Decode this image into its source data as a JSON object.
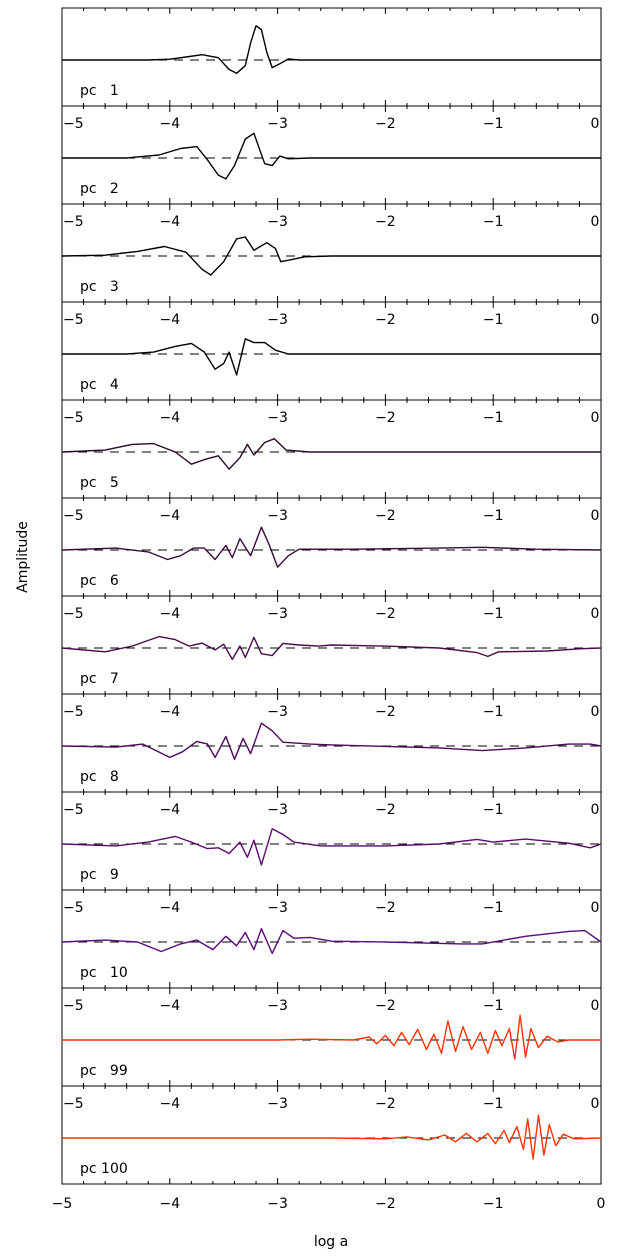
{
  "chart_data": {
    "type": "line",
    "xlabel": "log a",
    "ylabel": "Amplitude",
    "xlim": [
      -5,
      0
    ],
    "x_ticks": [
      -5,
      -4,
      -3,
      -2,
      -1,
      0
    ],
    "x_tick_labels": [
      "−5",
      "−4",
      "−3",
      "−2",
      "−1",
      "0"
    ],
    "grid": false,
    "reference_line": {
      "y": 0,
      "style": "dashed"
    },
    "panels": [
      {
        "label": "pc   1",
        "color": "#000000",
        "series": [
          {
            "x": -5,
            "y": 0
          },
          {
            "x": -4.2,
            "y": 0
          },
          {
            "x": -4.0,
            "y": 0.02
          },
          {
            "x": -3.85,
            "y": 0.08
          },
          {
            "x": -3.7,
            "y": 0.14
          },
          {
            "x": -3.55,
            "y": 0.06
          },
          {
            "x": -3.45,
            "y": -0.25
          },
          {
            "x": -3.38,
            "y": -0.35
          },
          {
            "x": -3.3,
            "y": -0.15
          },
          {
            "x": -3.25,
            "y": 0.45
          },
          {
            "x": -3.2,
            "y": 0.9
          },
          {
            "x": -3.15,
            "y": 0.8
          },
          {
            "x": -3.1,
            "y": 0.2
          },
          {
            "x": -3.05,
            "y": -0.2
          },
          {
            "x": -2.98,
            "y": -0.1
          },
          {
            "x": -2.9,
            "y": 0.03
          },
          {
            "x": -2.8,
            "y": 0
          },
          {
            "x": 0,
            "y": 0
          }
        ]
      },
      {
        "label": "pc   2",
        "color": "#000000",
        "series": [
          {
            "x": -5,
            "y": 0
          },
          {
            "x": -4.4,
            "y": 0
          },
          {
            "x": -4.1,
            "y": 0.08
          },
          {
            "x": -3.9,
            "y": 0.25
          },
          {
            "x": -3.75,
            "y": 0.3
          },
          {
            "x": -3.65,
            "y": -0.05
          },
          {
            "x": -3.55,
            "y": -0.45
          },
          {
            "x": -3.48,
            "y": -0.55
          },
          {
            "x": -3.4,
            "y": -0.2
          },
          {
            "x": -3.3,
            "y": 0.5
          },
          {
            "x": -3.22,
            "y": 0.65
          },
          {
            "x": -3.12,
            "y": -0.15
          },
          {
            "x": -3.05,
            "y": -0.2
          },
          {
            "x": -2.98,
            "y": 0.05
          },
          {
            "x": -2.9,
            "y": -0.02
          },
          {
            "x": -2.7,
            "y": 0
          },
          {
            "x": 0,
            "y": 0
          }
        ]
      },
      {
        "label": "pc   3",
        "color": "#000000",
        "series": [
          {
            "x": -5,
            "y": 0
          },
          {
            "x": -4.6,
            "y": 0.02
          },
          {
            "x": -4.3,
            "y": 0.12
          },
          {
            "x": -4.05,
            "y": 0.25
          },
          {
            "x": -3.85,
            "y": 0.1
          },
          {
            "x": -3.7,
            "y": -0.35
          },
          {
            "x": -3.62,
            "y": -0.5
          },
          {
            "x": -3.5,
            "y": -0.15
          },
          {
            "x": -3.38,
            "y": 0.45
          },
          {
            "x": -3.3,
            "y": 0.5
          },
          {
            "x": -3.22,
            "y": 0.15
          },
          {
            "x": -3.1,
            "y": 0.35
          },
          {
            "x": -3.02,
            "y": 0.2
          },
          {
            "x": -2.97,
            "y": -0.15
          },
          {
            "x": -2.88,
            "y": -0.1
          },
          {
            "x": -2.75,
            "y": -0.02
          },
          {
            "x": -2.5,
            "y": 0
          },
          {
            "x": 0,
            "y": 0
          }
        ]
      },
      {
        "label": "pc   4",
        "color": "#000000",
        "series": [
          {
            "x": -5,
            "y": 0
          },
          {
            "x": -4.4,
            "y": 0
          },
          {
            "x": -4.15,
            "y": 0.05
          },
          {
            "x": -3.95,
            "y": 0.2
          },
          {
            "x": -3.8,
            "y": 0.28
          },
          {
            "x": -3.68,
            "y": 0.05
          },
          {
            "x": -3.58,
            "y": -0.4
          },
          {
            "x": -3.5,
            "y": -0.25
          },
          {
            "x": -3.45,
            "y": 0.05
          },
          {
            "x": -3.38,
            "y": -0.55
          },
          {
            "x": -3.3,
            "y": 0.4
          },
          {
            "x": -3.22,
            "y": 0.3
          },
          {
            "x": -3.12,
            "y": 0.3
          },
          {
            "x": -3.02,
            "y": 0.1
          },
          {
            "x": -2.9,
            "y": 0
          },
          {
            "x": 0,
            "y": 0
          }
        ]
      },
      {
        "label": "pc   5",
        "color": "#2a0a2a",
        "series": [
          {
            "x": -5,
            "y": 0
          },
          {
            "x": -4.6,
            "y": 0.05
          },
          {
            "x": -4.35,
            "y": 0.2
          },
          {
            "x": -4.15,
            "y": 0.22
          },
          {
            "x": -3.95,
            "y": 0
          },
          {
            "x": -3.8,
            "y": -0.32
          },
          {
            "x": -3.68,
            "y": -0.2
          },
          {
            "x": -3.55,
            "y": -0.1
          },
          {
            "x": -3.45,
            "y": -0.45
          },
          {
            "x": -3.35,
            "y": -0.15
          },
          {
            "x": -3.28,
            "y": 0.2
          },
          {
            "x": -3.22,
            "y": -0.08
          },
          {
            "x": -3.12,
            "y": 0.25
          },
          {
            "x": -3.03,
            "y": 0.35
          },
          {
            "x": -2.92,
            "y": 0.05
          },
          {
            "x": -2.7,
            "y": 0
          },
          {
            "x": 0,
            "y": 0
          }
        ]
      },
      {
        "label": "pc   6",
        "color": "#3a0a3a",
        "series": [
          {
            "x": -5,
            "y": 0
          },
          {
            "x": -4.5,
            "y": 0.05
          },
          {
            "x": -4.2,
            "y": -0.05
          },
          {
            "x": -4.02,
            "y": -0.25
          },
          {
            "x": -3.9,
            "y": -0.15
          },
          {
            "x": -3.78,
            "y": 0.05
          },
          {
            "x": -3.68,
            "y": 0.05
          },
          {
            "x": -3.58,
            "y": -0.25
          },
          {
            "x": -3.48,
            "y": 0.12
          },
          {
            "x": -3.42,
            "y": -0.2
          },
          {
            "x": -3.35,
            "y": 0.3
          },
          {
            "x": -3.25,
            "y": -0.15
          },
          {
            "x": -3.15,
            "y": 0.6
          },
          {
            "x": -3.08,
            "y": 0.15
          },
          {
            "x": -3.0,
            "y": -0.45
          },
          {
            "x": -2.9,
            "y": -0.15
          },
          {
            "x": -2.8,
            "y": 0.02
          },
          {
            "x": -2.3,
            "y": 0.02
          },
          {
            "x": -1.5,
            "y": 0.05
          },
          {
            "x": -1.1,
            "y": 0.07
          },
          {
            "x": -0.6,
            "y": 0.02
          },
          {
            "x": 0,
            "y": 0
          }
        ]
      },
      {
        "label": "pc   7",
        "color": "#4a0a4a",
        "series": [
          {
            "x": -5,
            "y": 0
          },
          {
            "x": -4.6,
            "y": -0.1
          },
          {
            "x": -4.35,
            "y": 0.05
          },
          {
            "x": -4.1,
            "y": 0.3
          },
          {
            "x": -3.95,
            "y": 0.22
          },
          {
            "x": -3.82,
            "y": 0.05
          },
          {
            "x": -3.7,
            "y": 0.13
          },
          {
            "x": -3.58,
            "y": -0.05
          },
          {
            "x": -3.5,
            "y": 0.1
          },
          {
            "x": -3.42,
            "y": -0.3
          },
          {
            "x": -3.35,
            "y": 0.05
          },
          {
            "x": -3.3,
            "y": -0.25
          },
          {
            "x": -3.22,
            "y": 0.28
          },
          {
            "x": -3.15,
            "y": -0.15
          },
          {
            "x": -3.05,
            "y": -0.2
          },
          {
            "x": -2.95,
            "y": 0.12
          },
          {
            "x": -2.8,
            "y": 0.08
          },
          {
            "x": -2.62,
            "y": 0.05
          },
          {
            "x": -2.5,
            "y": 0.08
          },
          {
            "x": -2.0,
            "y": 0.05
          },
          {
            "x": -1.5,
            "y": 0
          },
          {
            "x": -1.15,
            "y": -0.12
          },
          {
            "x": -1.05,
            "y": -0.22
          },
          {
            "x": -0.95,
            "y": -0.1
          },
          {
            "x": -0.5,
            "y": -0.08
          },
          {
            "x": -0.2,
            "y": -0.02
          },
          {
            "x": 0,
            "y": 0
          }
        ]
      },
      {
        "label": "pc   8",
        "color": "#4a0a5a",
        "series": [
          {
            "x": -5,
            "y": 0
          },
          {
            "x": -4.5,
            "y": -0.03
          },
          {
            "x": -4.25,
            "y": 0.05
          },
          {
            "x": -4.0,
            "y": -0.3
          },
          {
            "x": -3.88,
            "y": -0.15
          },
          {
            "x": -3.75,
            "y": 0.12
          },
          {
            "x": -3.65,
            "y": 0.05
          },
          {
            "x": -3.58,
            "y": -0.3
          },
          {
            "x": -3.48,
            "y": 0.25
          },
          {
            "x": -3.4,
            "y": -0.35
          },
          {
            "x": -3.32,
            "y": 0.2
          },
          {
            "x": -3.25,
            "y": -0.2
          },
          {
            "x": -3.15,
            "y": 0.6
          },
          {
            "x": -3.05,
            "y": 0.4
          },
          {
            "x": -2.95,
            "y": 0.1
          },
          {
            "x": -2.7,
            "y": 0.05
          },
          {
            "x": -2.5,
            "y": 0.03
          },
          {
            "x": -1.5,
            "y": -0.05
          },
          {
            "x": -1.1,
            "y": -0.12
          },
          {
            "x": -0.7,
            "y": -0.05
          },
          {
            "x": -0.3,
            "y": 0.05
          },
          {
            "x": -0.1,
            "y": 0.05
          },
          {
            "x": 0,
            "y": 0
          }
        ]
      },
      {
        "label": "pc   9",
        "color": "#5a0a6a",
        "series": [
          {
            "x": -5,
            "y": 0
          },
          {
            "x": -4.5,
            "y": -0.05
          },
          {
            "x": -4.2,
            "y": 0.05
          },
          {
            "x": -3.95,
            "y": 0.2
          },
          {
            "x": -3.8,
            "y": 0.05
          },
          {
            "x": -3.65,
            "y": -0.12
          },
          {
            "x": -3.55,
            "y": -0.1
          },
          {
            "x": -3.45,
            "y": -0.25
          },
          {
            "x": -3.35,
            "y": 0.05
          },
          {
            "x": -3.28,
            "y": -0.35
          },
          {
            "x": -3.22,
            "y": 0.1
          },
          {
            "x": -3.15,
            "y": -0.55
          },
          {
            "x": -3.05,
            "y": 0.4
          },
          {
            "x": -2.95,
            "y": 0.25
          },
          {
            "x": -2.85,
            "y": 0.05
          },
          {
            "x": -2.6,
            "y": -0.05
          },
          {
            "x": -2.0,
            "y": -0.05
          },
          {
            "x": -1.5,
            "y": 0
          },
          {
            "x": -1.15,
            "y": 0.12
          },
          {
            "x": -1.0,
            "y": 0.05
          },
          {
            "x": -0.7,
            "y": 0.13
          },
          {
            "x": -0.3,
            "y": 0.02
          },
          {
            "x": -0.1,
            "y": -0.1
          },
          {
            "x": 0,
            "y": 0
          }
        ]
      },
      {
        "label": "pc   10",
        "color": "#5a0a7a",
        "series": [
          {
            "x": -5,
            "y": 0
          },
          {
            "x": -4.6,
            "y": 0.05
          },
          {
            "x": -4.3,
            "y": 0
          },
          {
            "x": -4.08,
            "y": -0.25
          },
          {
            "x": -3.9,
            "y": -0.05
          },
          {
            "x": -3.75,
            "y": 0.05
          },
          {
            "x": -3.6,
            "y": -0.2
          },
          {
            "x": -3.48,
            "y": 0.15
          },
          {
            "x": -3.38,
            "y": -0.1
          },
          {
            "x": -3.3,
            "y": 0.25
          },
          {
            "x": -3.22,
            "y": -0.2
          },
          {
            "x": -3.15,
            "y": 0.35
          },
          {
            "x": -3.05,
            "y": -0.3
          },
          {
            "x": -2.95,
            "y": 0.3
          },
          {
            "x": -2.85,
            "y": 0.1
          },
          {
            "x": -2.7,
            "y": 0.12
          },
          {
            "x": -2.5,
            "y": 0.02
          },
          {
            "x": -2.0,
            "y": 0
          },
          {
            "x": -1.3,
            "y": -0.05
          },
          {
            "x": -1.1,
            "y": -0.05
          },
          {
            "x": -0.7,
            "y": 0.15
          },
          {
            "x": -0.3,
            "y": 0.28
          },
          {
            "x": -0.15,
            "y": 0.3
          },
          {
            "x": 0,
            "y": 0
          }
        ]
      },
      {
        "label": "pc   99",
        "color": "#ff3300",
        "series": [
          {
            "x": -5,
            "y": 0
          },
          {
            "x": -3.0,
            "y": 0
          },
          {
            "x": -2.7,
            "y": 0.02
          },
          {
            "x": -2.3,
            "y": 0
          },
          {
            "x": -2.15,
            "y": 0.08
          },
          {
            "x": -2.08,
            "y": -0.1
          },
          {
            "x": -2.0,
            "y": 0.12
          },
          {
            "x": -1.92,
            "y": -0.15
          },
          {
            "x": -1.85,
            "y": 0.2
          },
          {
            "x": -1.78,
            "y": -0.12
          },
          {
            "x": -1.7,
            "y": 0.28
          },
          {
            "x": -1.62,
            "y": -0.25
          },
          {
            "x": -1.55,
            "y": 0.15
          },
          {
            "x": -1.48,
            "y": -0.35
          },
          {
            "x": -1.42,
            "y": 0.5
          },
          {
            "x": -1.35,
            "y": -0.3
          },
          {
            "x": -1.28,
            "y": 0.35
          },
          {
            "x": -1.2,
            "y": -0.25
          },
          {
            "x": -1.12,
            "y": 0.2
          },
          {
            "x": -1.05,
            "y": -0.35
          },
          {
            "x": -0.98,
            "y": 0.25
          },
          {
            "x": -0.92,
            "y": -0.15
          },
          {
            "x": -0.85,
            "y": 0.3
          },
          {
            "x": -0.8,
            "y": -0.5
          },
          {
            "x": -0.75,
            "y": 0.65
          },
          {
            "x": -0.7,
            "y": -0.45
          },
          {
            "x": -0.65,
            "y": 0.3
          },
          {
            "x": -0.58,
            "y": -0.2
          },
          {
            "x": -0.5,
            "y": 0.1
          },
          {
            "x": -0.4,
            "y": -0.05
          },
          {
            "x": -0.3,
            "y": 0
          },
          {
            "x": 0,
            "y": 0
          }
        ]
      },
      {
        "label": "pc 100",
        "color": "#ff3300",
        "series": [
          {
            "x": -5,
            "y": 0
          },
          {
            "x": -2.5,
            "y": 0
          },
          {
            "x": -2.0,
            "y": -0.02
          },
          {
            "x": -1.8,
            "y": 0.03
          },
          {
            "x": -1.6,
            "y": -0.05
          },
          {
            "x": -1.45,
            "y": 0.08
          },
          {
            "x": -1.35,
            "y": -0.1
          },
          {
            "x": -1.25,
            "y": 0.12
          },
          {
            "x": -1.15,
            "y": -0.1
          },
          {
            "x": -1.05,
            "y": 0.12
          },
          {
            "x": -0.98,
            "y": -0.15
          },
          {
            "x": -0.9,
            "y": 0.2
          },
          {
            "x": -0.85,
            "y": -0.12
          },
          {
            "x": -0.78,
            "y": 0.3
          },
          {
            "x": -0.72,
            "y": -0.3
          },
          {
            "x": -0.68,
            "y": 0.5
          },
          {
            "x": -0.63,
            "y": -0.55
          },
          {
            "x": -0.58,
            "y": 0.6
          },
          {
            "x": -0.53,
            "y": -0.45
          },
          {
            "x": -0.48,
            "y": 0.35
          },
          {
            "x": -0.42,
            "y": -0.2
          },
          {
            "x": -0.35,
            "y": 0.1
          },
          {
            "x": -0.25,
            "y": -0.02
          },
          {
            "x": 0,
            "y": 0
          }
        ]
      }
    ]
  }
}
